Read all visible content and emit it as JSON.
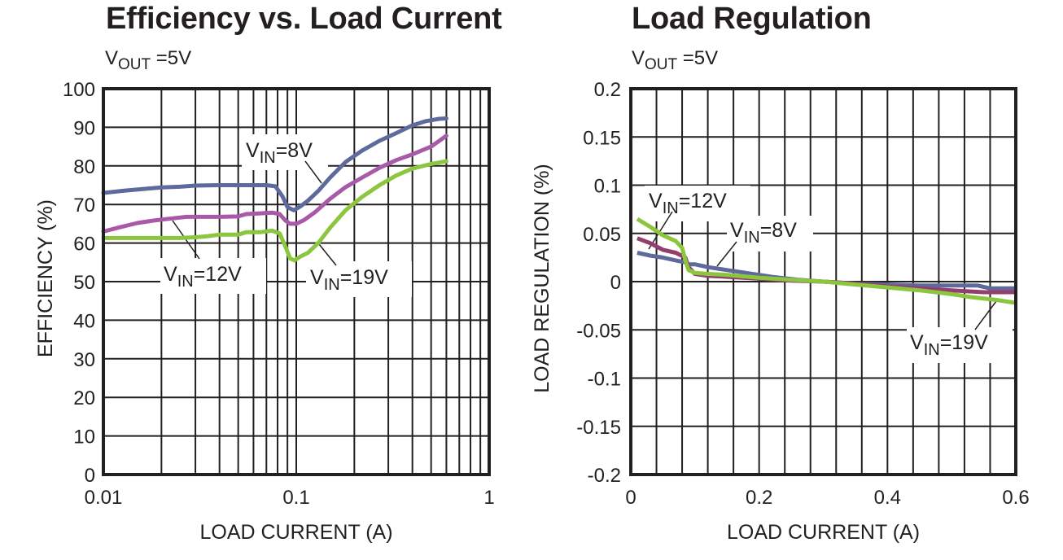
{
  "chart_data": [
    {
      "type": "line",
      "title": "Efficiency vs. Load Current",
      "subtitle": {
        "main": "V",
        "sub": "OUT",
        "rest": " =5V"
      },
      "xlabel": "LOAD CURRENT (A)",
      "ylabel": "EFFICIENCY (%)",
      "xscale": "log",
      "xlim": [
        0.01,
        1
      ],
      "ylim": [
        0,
        100
      ],
      "grid": true,
      "xticks": [
        {
          "value": 0.01,
          "label": "0.01"
        },
        {
          "value": 0.1,
          "label": "0.1"
        },
        {
          "value": 1,
          "label": "1"
        }
      ],
      "yticks": [
        {
          "value": 0,
          "label": "0"
        },
        {
          "value": 10,
          "label": "10"
        },
        {
          "value": 20,
          "label": "20"
        },
        {
          "value": 30,
          "label": "30"
        },
        {
          "value": 40,
          "label": "40"
        },
        {
          "value": 50,
          "label": "50"
        },
        {
          "value": 60,
          "label": "60"
        },
        {
          "value": 70,
          "label": "70"
        },
        {
          "value": 80,
          "label": "80"
        },
        {
          "value": 90,
          "label": "90"
        },
        {
          "value": 100,
          "label": "100"
        }
      ],
      "series": [
        {
          "name": "VIN=8V",
          "color": "#5f6a9c",
          "x": [
            0.01,
            0.013,
            0.016,
            0.02,
            0.025,
            0.03,
            0.04,
            0.05,
            0.06,
            0.07,
            0.078,
            0.085,
            0.09,
            0.097,
            0.105,
            0.115,
            0.13,
            0.15,
            0.18,
            0.22,
            0.27,
            0.33,
            0.4,
            0.47,
            0.55,
            0.6
          ],
          "y": [
            73,
            73.6,
            74,
            74.4,
            74.6,
            74.9,
            75,
            75,
            75,
            75,
            74.7,
            72,
            69.3,
            68.5,
            69.5,
            71,
            73.5,
            77,
            81,
            84,
            86.5,
            88.5,
            90.5,
            91.6,
            92.2,
            92.3
          ]
        },
        {
          "name": "VIN=12V",
          "color": "#a85aa8",
          "x": [
            0.01,
            0.012,
            0.015,
            0.018,
            0.022,
            0.027,
            0.033,
            0.04,
            0.05,
            0.055,
            0.065,
            0.075,
            0.082,
            0.088,
            0.093,
            0.1,
            0.11,
            0.125,
            0.15,
            0.18,
            0.22,
            0.27,
            0.33,
            0.4,
            0.5,
            0.6
          ],
          "y": [
            63,
            64,
            65.2,
            65.8,
            66.3,
            66.8,
            66.8,
            66.8,
            66.9,
            67.5,
            67.7,
            67.9,
            67.5,
            65.8,
            65,
            65,
            66,
            68,
            71.5,
            74.5,
            77,
            79.5,
            81.5,
            83,
            85,
            87.8
          ]
        },
        {
          "name": "VIN=19V",
          "color": "#8cc63f",
          "x": [
            0.01,
            0.015,
            0.02,
            0.025,
            0.03,
            0.035,
            0.04,
            0.05,
            0.055,
            0.065,
            0.075,
            0.082,
            0.088,
            0.093,
            0.098,
            0.105,
            0.115,
            0.13,
            0.15,
            0.18,
            0.22,
            0.27,
            0.33,
            0.4,
            0.5,
            0.6
          ],
          "y": [
            61.3,
            61.3,
            61.3,
            61.3,
            61.5,
            61.8,
            62.2,
            62.2,
            62.8,
            62.8,
            63.2,
            62.5,
            59,
            56,
            55.5,
            56.5,
            57.5,
            60,
            64,
            68.5,
            72,
            75,
            77.5,
            79.3,
            80.5,
            81.2
          ]
        }
      ],
      "annotations": [
        {
          "main": "V",
          "sub": "IN",
          "rest": "=8V"
        },
        {
          "main": "V",
          "sub": "IN",
          "rest": "=12V"
        },
        {
          "main": "V",
          "sub": "IN",
          "rest": "=19V"
        }
      ]
    },
    {
      "type": "line",
      "title": "Load Regulation",
      "subtitle": {
        "main": "V",
        "sub": "OUT",
        "rest": " =5V"
      },
      "xlabel": "LOAD CURRENT (A)",
      "ylabel": "LOAD REGULATION (%)",
      "xscale": "linear",
      "xlim": [
        0,
        0.6
      ],
      "ylim": [
        -0.2,
        0.2
      ],
      "grid": true,
      "xticks": [
        {
          "value": 0,
          "label": "0"
        },
        {
          "value": 0.2,
          "label": "0.2"
        },
        {
          "value": 0.4,
          "label": "0.4"
        },
        {
          "value": 0.6,
          "label": "0.6"
        }
      ],
      "yticks": [
        {
          "value": 0.2,
          "label": "0.2"
        },
        {
          "value": 0.15,
          "label": "0.15"
        },
        {
          "value": 0.1,
          "label": "0.1"
        },
        {
          "value": 0.05,
          "label": "0.05"
        },
        {
          "value": 0,
          "label": "0"
        },
        {
          "value": -0.05,
          "label": "-0.05"
        },
        {
          "value": -0.1,
          "label": "-0.1"
        },
        {
          "value": -0.15,
          "label": "-0.15"
        },
        {
          "value": -0.2,
          "label": "-0.2"
        }
      ],
      "series": [
        {
          "name": "VIN=8V",
          "color": "#5f6a9c",
          "x": [
            0.01,
            0.03,
            0.05,
            0.07,
            0.085,
            0.09,
            0.1,
            0.12,
            0.15,
            0.18,
            0.22,
            0.26,
            0.3,
            0.35,
            0.4,
            0.45,
            0.5,
            0.54,
            0.56,
            0.6
          ],
          "y": [
            0.03,
            0.027,
            0.025,
            0.022,
            0.02,
            0.018,
            0.018,
            0.015,
            0.012,
            0.009,
            0.005,
            0.002,
            0,
            -0.002,
            -0.003,
            -0.004,
            -0.004,
            -0.004,
            -0.007,
            -0.007
          ]
        },
        {
          "name": "VIN=12V",
          "color": "#943e6e",
          "x": [
            0.01,
            0.03,
            0.05,
            0.07,
            0.085,
            0.09,
            0.1,
            0.12,
            0.15,
            0.2,
            0.25,
            0.3,
            0.35,
            0.4,
            0.45,
            0.5,
            0.55,
            0.6
          ],
          "y": [
            0.045,
            0.04,
            0.033,
            0.03,
            0.025,
            0.015,
            0.008,
            0.006,
            0.005,
            0.003,
            0.001,
            0,
            -0.002,
            -0.005,
            -0.007,
            -0.009,
            -0.011,
            -0.011
          ]
        },
        {
          "name": "VIN=19V",
          "color": "#8cc63f",
          "x": [
            0.01,
            0.03,
            0.05,
            0.07,
            0.08,
            0.085,
            0.09,
            0.1,
            0.12,
            0.15,
            0.2,
            0.25,
            0.3,
            0.35,
            0.4,
            0.45,
            0.5,
            0.53,
            0.57,
            0.6
          ],
          "y": [
            0.065,
            0.057,
            0.048,
            0.042,
            0.035,
            0.022,
            0.012,
            0.009,
            0.008,
            0.007,
            0.004,
            0.002,
            0,
            -0.003,
            -0.006,
            -0.009,
            -0.013,
            -0.016,
            -0.019,
            -0.022
          ]
        }
      ],
      "annotations": [
        {
          "main": "V",
          "sub": "IN",
          "rest": "=12V"
        },
        {
          "main": "V",
          "sub": "IN",
          "rest": "=8V"
        },
        {
          "main": "V",
          "sub": "IN",
          "rest": "=19V"
        }
      ]
    }
  ]
}
